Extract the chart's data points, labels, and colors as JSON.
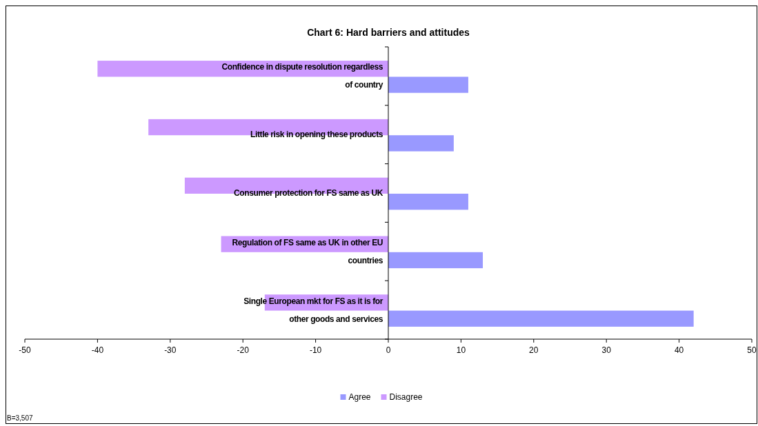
{
  "chart_data": {
    "type": "bar",
    "orientation": "horizontal",
    "title": "Chart 6: Hard barriers and attitudes",
    "categories": [
      "Confidence in dispute resolution regardless of country",
      "Little risk in opening these products",
      "Consumer protection for FS same as UK",
      "Regulation of FS same as UK in other EU countries",
      "Single European mkt for FS as it is for other goods and services"
    ],
    "series": [
      {
        "name": "Agree",
        "color": "#9999ff",
        "values": [
          11,
          9,
          11,
          13,
          42
        ]
      },
      {
        "name": "Disagree",
        "color": "#cc99ff",
        "values": [
          -40,
          -33,
          -28,
          -23,
          -17
        ]
      }
    ],
    "xlim": [
      -50,
      50
    ],
    "xticks": [
      -50,
      -40,
      -30,
      -20,
      -10,
      0,
      10,
      20,
      30,
      40,
      50
    ],
    "grid": false,
    "legend": "bottom",
    "annotations": [
      "B=3,507"
    ]
  }
}
